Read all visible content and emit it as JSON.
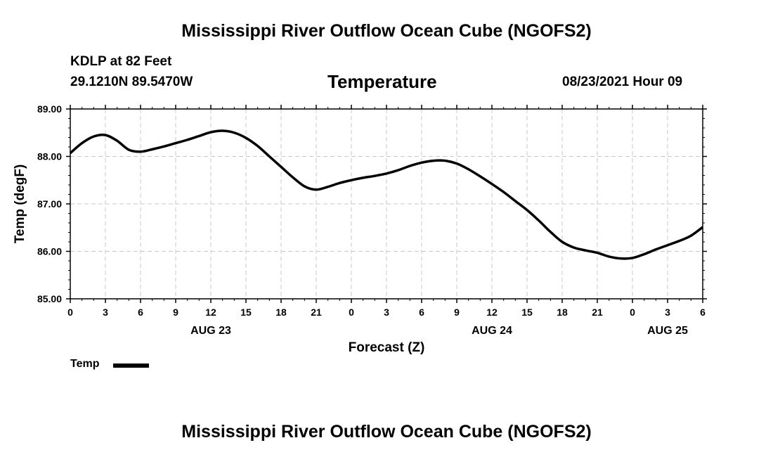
{
  "header": {
    "title_top": "Mississippi River Outflow Ocean Cube (NGOFS2)",
    "title_bottom": "Mississippi River Outflow Ocean Cube (NGOFS2)",
    "station": "KDLP at 82 Feet",
    "coordinates": "29.1210N  89.5470W",
    "subtitle": "Temperature",
    "datetime": "08/23/2021 Hour 09"
  },
  "legend": {
    "label": "Temp",
    "color": "#000000"
  },
  "chart_data": {
    "type": "line",
    "title": "Temperature",
    "xlabel": "Forecast (Z)",
    "ylabel": "Temp (degF)",
    "ylim": [
      85.0,
      89.0
    ],
    "xlim": [
      0,
      54
    ],
    "grid": true,
    "y_ticks": [
      "85.00",
      "86.00",
      "87.00",
      "88.00",
      "89.00"
    ],
    "x_ticks": [
      {
        "hours": 0,
        "label": "0"
      },
      {
        "hours": 3,
        "label": "3"
      },
      {
        "hours": 6,
        "label": "6"
      },
      {
        "hours": 9,
        "label": "9"
      },
      {
        "hours": 12,
        "label": "12"
      },
      {
        "hours": 15,
        "label": "15"
      },
      {
        "hours": 18,
        "label": "18"
      },
      {
        "hours": 21,
        "label": "21"
      },
      {
        "hours": 24,
        "label": "0"
      },
      {
        "hours": 27,
        "label": "3"
      },
      {
        "hours": 30,
        "label": "6"
      },
      {
        "hours": 33,
        "label": "9"
      },
      {
        "hours": 36,
        "label": "12"
      },
      {
        "hours": 39,
        "label": "15"
      },
      {
        "hours": 42,
        "label": "18"
      },
      {
        "hours": 45,
        "label": "21"
      },
      {
        "hours": 48,
        "label": "0"
      },
      {
        "hours": 51,
        "label": "3"
      },
      {
        "hours": 54,
        "label": "6"
      }
    ],
    "date_labels": [
      {
        "hours": 12,
        "label": "AUG 23"
      },
      {
        "hours": 36,
        "label": "AUG 24"
      },
      {
        "hours": 51,
        "label": "AUG 25"
      }
    ],
    "series": [
      {
        "name": "Temp",
        "x": [
          0,
          1,
          2,
          3,
          4,
          5,
          6,
          7,
          8,
          9,
          10,
          11,
          12,
          13,
          14,
          15,
          16,
          17,
          18,
          19,
          20,
          21,
          22,
          23,
          24,
          25,
          26,
          27,
          28,
          29,
          30,
          31,
          32,
          33,
          34,
          35,
          36,
          37,
          38,
          39,
          40,
          41,
          42,
          43,
          44,
          45,
          46,
          47,
          48,
          49,
          50,
          51,
          52,
          53,
          54
        ],
        "values": [
          88.07,
          88.28,
          88.42,
          88.45,
          88.33,
          88.14,
          88.1,
          88.15,
          88.21,
          88.28,
          88.35,
          88.43,
          88.51,
          88.54,
          88.5,
          88.39,
          88.22,
          88.0,
          87.78,
          87.56,
          87.37,
          87.3,
          87.36,
          87.44,
          87.5,
          87.55,
          87.59,
          87.64,
          87.71,
          87.8,
          87.87,
          87.91,
          87.91,
          87.85,
          87.73,
          87.58,
          87.42,
          87.25,
          87.06,
          86.87,
          86.65,
          86.41,
          86.2,
          86.08,
          86.02,
          85.97,
          85.89,
          85.85,
          85.86,
          85.94,
          86.04,
          86.13,
          86.22,
          86.33,
          86.51
        ]
      }
    ]
  }
}
